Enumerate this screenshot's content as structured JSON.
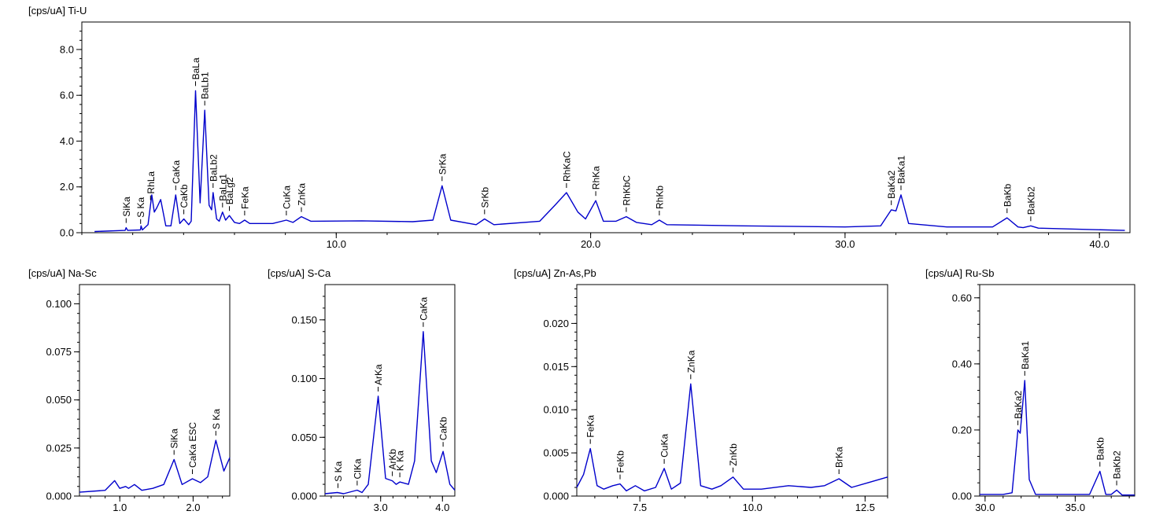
{
  "chart_data": [
    {
      "type": "line",
      "title": "[cps/uA] Ti-U",
      "xlim": [
        0,
        41.2
      ],
      "ylim": [
        0,
        9.2
      ],
      "xticks": [
        10.0,
        20.0,
        30.0,
        40.0
      ],
      "yticks": [
        0.0,
        2.0,
        4.0,
        6.0,
        8.0
      ],
      "decimals": 1,
      "color": "#0000cc",
      "series": [
        {
          "points": [
            [
              0.5,
              0.05
            ],
            [
              1.7,
              0.1
            ],
            [
              1.74,
              0.22
            ],
            [
              1.8,
              0.1
            ],
            [
              2.3,
              0.12
            ],
            [
              2.33,
              0.3
            ],
            [
              2.38,
              0.12
            ],
            [
              2.6,
              0.35
            ],
            [
              2.75,
              1.65
            ],
            [
              2.85,
              0.9
            ],
            [
              2.95,
              1.1
            ],
            [
              3.1,
              1.45
            ],
            [
              3.3,
              0.3
            ],
            [
              3.5,
              0.3
            ],
            [
              3.69,
              1.65
            ],
            [
              3.85,
              0.4
            ],
            [
              4.01,
              0.6
            ],
            [
              4.2,
              0.35
            ],
            [
              4.3,
              0.5
            ],
            [
              4.47,
              6.2
            ],
            [
              4.65,
              1.3
            ],
            [
              4.83,
              5.35
            ],
            [
              5.0,
              1.2
            ],
            [
              5.1,
              1.0
            ],
            [
              5.16,
              1.75
            ],
            [
              5.3,
              0.6
            ],
            [
              5.4,
              0.5
            ],
            [
              5.53,
              0.9
            ],
            [
              5.65,
              0.55
            ],
            [
              5.8,
              0.75
            ],
            [
              6.0,
              0.45
            ],
            [
              6.2,
              0.4
            ],
            [
              6.4,
              0.55
            ],
            [
              6.6,
              0.4
            ],
            [
              7.5,
              0.4
            ],
            [
              8.04,
              0.55
            ],
            [
              8.3,
              0.45
            ],
            [
              8.63,
              0.7
            ],
            [
              9.0,
              0.5
            ],
            [
              11.0,
              0.52
            ],
            [
              13.0,
              0.48
            ],
            [
              13.8,
              0.55
            ],
            [
              14.16,
              2.05
            ],
            [
              14.5,
              0.55
            ],
            [
              15.5,
              0.35
            ],
            [
              15.83,
              0.6
            ],
            [
              16.2,
              0.35
            ],
            [
              18.0,
              0.5
            ],
            [
              18.6,
              1.2
            ],
            [
              19.05,
              1.75
            ],
            [
              19.5,
              0.9
            ],
            [
              19.8,
              0.6
            ],
            [
              20.2,
              1.4
            ],
            [
              20.5,
              0.5
            ],
            [
              21.0,
              0.5
            ],
            [
              21.4,
              0.7
            ],
            [
              21.8,
              0.45
            ],
            [
              22.4,
              0.35
            ],
            [
              22.7,
              0.55
            ],
            [
              23.0,
              0.35
            ],
            [
              26.0,
              0.3
            ],
            [
              30.0,
              0.25
            ],
            [
              31.4,
              0.3
            ],
            [
              31.82,
              1.0
            ],
            [
              32.0,
              0.95
            ],
            [
              32.2,
              1.65
            ],
            [
              32.5,
              0.4
            ],
            [
              34.0,
              0.25
            ],
            [
              35.8,
              0.25
            ],
            [
              36.37,
              0.65
            ],
            [
              36.8,
              0.25
            ],
            [
              37.0,
              0.22
            ],
            [
              37.3,
              0.3
            ],
            [
              37.6,
              0.2
            ],
            [
              41.0,
              0.1
            ]
          ]
        }
      ],
      "peaks": [
        {
          "label": "SiKa",
          "x": 1.74
        },
        {
          "label": "S Ka",
          "x": 2.31
        },
        {
          "label": "RhLa",
          "x": 2.7
        },
        {
          "label": "CaKa",
          "x": 3.69
        },
        {
          "label": "CaKb",
          "x": 4.01
        },
        {
          "label": "BaLa",
          "x": 4.47
        },
        {
          "label": "BaLb1",
          "x": 4.83
        },
        {
          "label": "BaLb2",
          "x": 5.16
        },
        {
          "label": "BaLg1",
          "x": 5.53
        },
        {
          "label": "BaLg2",
          "x": 5.8
        },
        {
          "label": "FeKa",
          "x": 6.4
        },
        {
          "label": "CuKa",
          "x": 8.04
        },
        {
          "label": "ZnKa",
          "x": 8.63
        },
        {
          "label": "SrKa",
          "x": 14.16
        },
        {
          "label": "SrKb",
          "x": 15.83
        },
        {
          "label": "RhKaC",
          "x": 19.05
        },
        {
          "label": "RhKa",
          "x": 20.2
        },
        {
          "label": "RhKbC",
          "x": 21.4
        },
        {
          "label": "RhKb",
          "x": 22.7
        },
        {
          "label": "BaKa2",
          "x": 31.82
        },
        {
          "label": "BaKa1",
          "x": 32.2
        },
        {
          "label": "BaKb",
          "x": 36.37
        },
        {
          "label": "BaKb2",
          "x": 37.3
        }
      ]
    },
    {
      "type": "line",
      "title": "[cps/uA] Na-Sc",
      "xlim": [
        0.45,
        2.5
      ],
      "ylim": [
        0,
        0.11
      ],
      "xticks": [
        1.0,
        2.0
      ],
      "yticks": [
        0.0,
        0.025,
        0.05,
        0.075,
        0.1
      ],
      "decimals": 3,
      "color": "#0000cc",
      "series": [
        {
          "points": [
            [
              0.45,
              0.002
            ],
            [
              0.8,
              0.003
            ],
            [
              0.93,
              0.008
            ],
            [
              1.0,
              0.004
            ],
            [
              1.08,
              0.005
            ],
            [
              1.12,
              0.004
            ],
            [
              1.2,
              0.006
            ],
            [
              1.3,
              0.003
            ],
            [
              1.45,
              0.004
            ],
            [
              1.6,
              0.006
            ],
            [
              1.74,
              0.019
            ],
            [
              1.85,
              0.006
            ],
            [
              1.99,
              0.009
            ],
            [
              2.1,
              0.007
            ],
            [
              2.2,
              0.01
            ],
            [
              2.31,
              0.029
            ],
            [
              2.42,
              0.013
            ],
            [
              2.5,
              0.02
            ]
          ]
        }
      ],
      "peaks": [
        {
          "label": "SiKa",
          "x": 1.74
        },
        {
          "label": "CaKa ESC",
          "x": 1.99
        },
        {
          "label": "S Ka",
          "x": 2.31
        }
      ]
    },
    {
      "type": "line",
      "title": "[cps/uA] S-Ca",
      "xlim": [
        2.1,
        4.2
      ],
      "ylim": [
        0,
        0.18
      ],
      "xticks": [
        3.0,
        4.0
      ],
      "yticks": [
        0.0,
        0.05,
        0.1,
        0.15
      ],
      "decimals": 3,
      "color": "#0000cc",
      "series": [
        {
          "points": [
            [
              2.1,
              0.002
            ],
            [
              2.3,
              0.003
            ],
            [
              2.4,
              0.002
            ],
            [
              2.62,
              0.005
            ],
            [
              2.7,
              0.003
            ],
            [
              2.8,
              0.01
            ],
            [
              2.96,
              0.085
            ],
            [
              3.08,
              0.015
            ],
            [
              3.19,
              0.013
            ],
            [
              3.25,
              0.01
            ],
            [
              3.31,
              0.012
            ],
            [
              3.45,
              0.01
            ],
            [
              3.55,
              0.03
            ],
            [
              3.69,
              0.14
            ],
            [
              3.82,
              0.03
            ],
            [
              3.9,
              0.02
            ],
            [
              4.01,
              0.038
            ],
            [
              4.12,
              0.01
            ],
            [
              4.2,
              0.005
            ]
          ]
        }
      ],
      "peaks": [
        {
          "label": "S Ka",
          "x": 2.31
        },
        {
          "label": "ClKa",
          "x": 2.62
        },
        {
          "label": "ArKa",
          "x": 2.96
        },
        {
          "label": "ArKb",
          "x": 3.19
        },
        {
          "label": "K Ka",
          "x": 3.31
        },
        {
          "label": "CaKa",
          "x": 3.69
        },
        {
          "label": "CaKb",
          "x": 4.01
        }
      ]
    },
    {
      "type": "line",
      "title": "[cps/uA] Zn-As,Pb",
      "xlim": [
        6.1,
        13.0
      ],
      "ylim": [
        0,
        0.0245
      ],
      "xticks": [
        7.5,
        10.0,
        12.5
      ],
      "yticks": [
        0.0,
        0.005,
        0.01,
        0.015,
        0.02
      ],
      "decimals": 3,
      "color": "#0000cc",
      "series": [
        {
          "points": [
            [
              6.1,
              0.001
            ],
            [
              6.25,
              0.0025
            ],
            [
              6.4,
              0.0055
            ],
            [
              6.55,
              0.0012
            ],
            [
              6.7,
              0.0008
            ],
            [
              6.9,
              0.0012
            ],
            [
              7.06,
              0.0014
            ],
            [
              7.2,
              0.0006
            ],
            [
              7.4,
              0.0012
            ],
            [
              7.6,
              0.0006
            ],
            [
              7.85,
              0.001
            ],
            [
              8.04,
              0.0032
            ],
            [
              8.2,
              0.0008
            ],
            [
              8.4,
              0.0015
            ],
            [
              8.63,
              0.013
            ],
            [
              8.85,
              0.0012
            ],
            [
              9.1,
              0.0008
            ],
            [
              9.3,
              0.0012
            ],
            [
              9.57,
              0.0022
            ],
            [
              9.8,
              0.0008
            ],
            [
              10.2,
              0.0008
            ],
            [
              10.8,
              0.0012
            ],
            [
              11.3,
              0.001
            ],
            [
              11.6,
              0.0012
            ],
            [
              11.92,
              0.002
            ],
            [
              12.2,
              0.001
            ],
            [
              12.6,
              0.0016
            ],
            [
              13.0,
              0.0022
            ]
          ]
        }
      ],
      "peaks": [
        {
          "label": "FeKa",
          "x": 6.4
        },
        {
          "label": "FeKb",
          "x": 7.06
        },
        {
          "label": "CuKa",
          "x": 8.04
        },
        {
          "label": "ZnKa",
          "x": 8.63
        },
        {
          "label": "ZnKb",
          "x": 9.57
        },
        {
          "label": "BrKa",
          "x": 11.92
        }
      ]
    },
    {
      "type": "line",
      "title": "[cps/uA] Ru-Sb",
      "xlim": [
        29.7,
        38.3
      ],
      "ylim": [
        0,
        0.64
      ],
      "xticks": [
        30.0,
        35.0
      ],
      "yticks": [
        0.0,
        0.2,
        0.4,
        0.6
      ],
      "decimals": 2,
      "color": "#0000cc",
      "series": [
        {
          "points": [
            [
              29.7,
              0.005
            ],
            [
              31.0,
              0.005
            ],
            [
              31.5,
              0.01
            ],
            [
              31.82,
              0.2
            ],
            [
              31.95,
              0.19
            ],
            [
              32.2,
              0.35
            ],
            [
              32.45,
              0.05
            ],
            [
              32.8,
              0.005
            ],
            [
              35.8,
              0.005
            ],
            [
              36.37,
              0.075
            ],
            [
              36.7,
              0.005
            ],
            [
              37.0,
              0.005
            ],
            [
              37.3,
              0.018
            ],
            [
              37.6,
              0.003
            ],
            [
              38.3,
              0.003
            ]
          ]
        }
      ],
      "peaks": [
        {
          "label": "BaKa2",
          "x": 31.82
        },
        {
          "label": "BaKa1",
          "x": 32.2
        },
        {
          "label": "BaKb",
          "x": 36.37
        },
        {
          "label": "BaKb2",
          "x": 37.3
        }
      ]
    }
  ]
}
